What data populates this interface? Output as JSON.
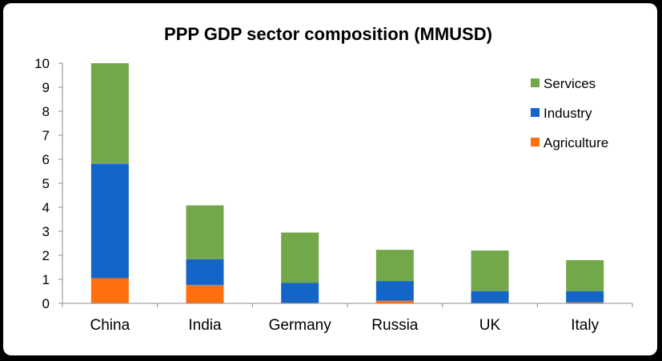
{
  "chart_data": {
    "type": "bar",
    "stacked": true,
    "title": "PPP GDP sector composition (MMUSD)",
    "xlabel": "",
    "ylabel": "",
    "ylim": [
      0,
      10
    ],
    "yticks": [
      0,
      1,
      2,
      3,
      4,
      5,
      6,
      7,
      8,
      9,
      10
    ],
    "grid": false,
    "legend_position": "top-right",
    "categories": [
      "China",
      "India",
      "Germany",
      "Russia",
      "UK",
      "Italy"
    ],
    "series": [
      {
        "name": "Agriculture",
        "color": "#ff6f0f",
        "values": [
          1.05,
          0.77,
          0.02,
          0.11,
          0.02,
          0.04
        ]
      },
      {
        "name": "Industry",
        "color": "#1565c8",
        "values": [
          4.75,
          1.07,
          0.83,
          0.82,
          0.49,
          0.47
        ]
      },
      {
        "name": "Services",
        "color": "#72a84a",
        "values": [
          4.2,
          2.24,
          2.1,
          1.3,
          1.69,
          1.29
        ]
      }
    ],
    "legend_order": [
      "Services",
      "Industry",
      "Agriculture"
    ]
  }
}
